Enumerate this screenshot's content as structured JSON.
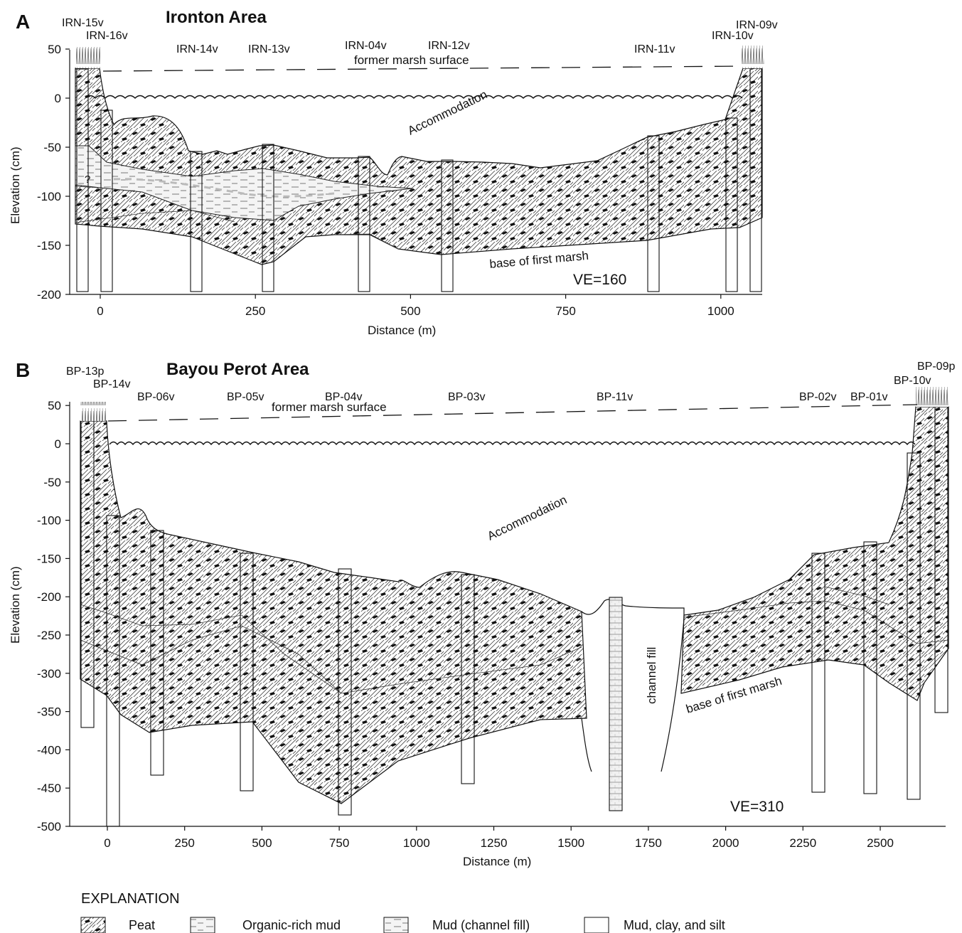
{
  "panel_a": {
    "letter": "A",
    "title": "Ironton Area",
    "ylabel": "Elevation (cm)",
    "xlabel": "Distance (m)",
    "yticks": [
      "50",
      "0",
      "-50",
      "-100",
      "-150",
      "-200"
    ],
    "xticks": [
      "0",
      "250",
      "500",
      "750",
      "1000"
    ],
    "cores": [
      "IRN-15v",
      "IRN-16v",
      "IRN-14v",
      "IRN-13v",
      "IRN-04v",
      "IRN-12v",
      "IRN-11v",
      "IRN-10v",
      "IRN-09v"
    ],
    "former_surface": "former marsh surface",
    "accommodation": "Accommodation",
    "base_label": "base of first marsh",
    "question_mark": "?",
    "ve": "VE=160"
  },
  "panel_b": {
    "letter": "B",
    "title": "Bayou Perot Area",
    "ylabel": "Elevation (cm)",
    "xlabel": "Distance (m)",
    "yticks": [
      "50",
      "0",
      "-50",
      "-100",
      "-150",
      "-200",
      "-250",
      "-300",
      "-350",
      "-400",
      "-450",
      "-500"
    ],
    "xticks": [
      "0",
      "250",
      "500",
      "750",
      "1000",
      "1250",
      "1500",
      "1750",
      "2000",
      "2250",
      "2500"
    ],
    "cores": [
      "BP-13p",
      "BP-14v",
      "BP-06v",
      "BP-05v",
      "BP-04v",
      "BP-03v",
      "BP-11v",
      "BP-02v",
      "BP-01v",
      "BP-10v",
      "BP-09p"
    ],
    "former_surface": "former marsh surface",
    "accommodation": "Accommodation",
    "channel_fill": "channel fill",
    "base_label": "base of first marsh",
    "ve": "VE=310"
  },
  "explanation": {
    "title": "EXPLANATION",
    "items": [
      "Peat",
      "Organic-rich mud",
      "Mud (channel fill)",
      "Mud, clay, and silt"
    ]
  }
}
